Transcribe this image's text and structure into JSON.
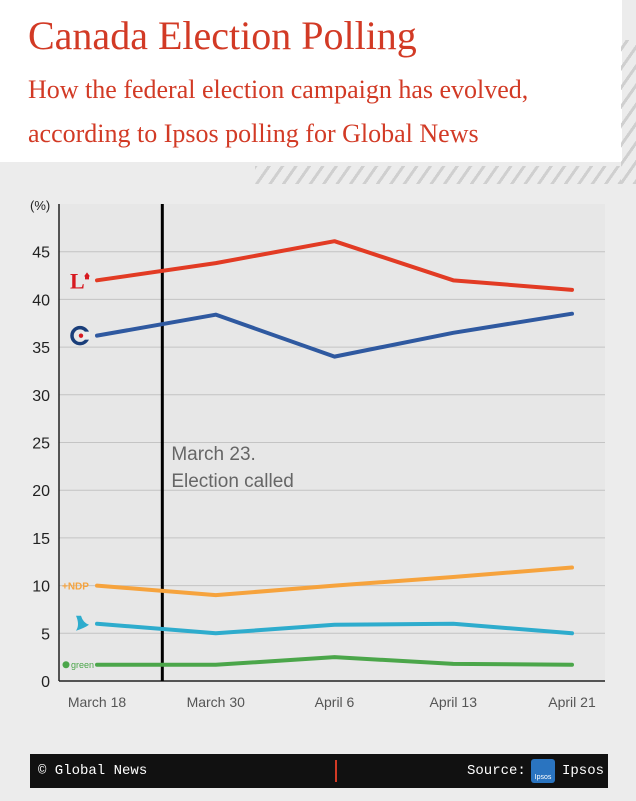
{
  "header": {
    "title": "Canada Election Polling",
    "subtitle": "How the federal election campaign has evolved, according to Ipsos polling for Global News"
  },
  "chart_data": {
    "type": "line",
    "ylabel": "(%)",
    "ylim": [
      0,
      50
    ],
    "yticks": [
      0,
      5,
      10,
      15,
      20,
      25,
      30,
      35,
      40,
      45
    ],
    "categories": [
      "March 18",
      "March 30",
      "April 6",
      "April 13",
      "April 21"
    ],
    "grid": true,
    "series": [
      {
        "party": "Liberal",
        "values": [
          42,
          43.8,
          46.1,
          42,
          41
        ],
        "color": "#e23b24",
        "icon": "liberal-logo"
      },
      {
        "party": "Conservative",
        "values": [
          36.2,
          38.4,
          34,
          36.5,
          38.5
        ],
        "color": "#2f59a0",
        "icon": "conservative-logo"
      },
      {
        "party": "NDP",
        "values": [
          10,
          9,
          10,
          10.9,
          11.9
        ],
        "color": "#f6a33d",
        "icon": "ndp-logo",
        "icon_text": "+NDP"
      },
      {
        "party": "Bloc Québécois",
        "values": [
          6,
          5,
          5.9,
          6,
          5
        ],
        "color": "#2eaccd",
        "icon": "bloc-logo"
      },
      {
        "party": "Green",
        "values": [
          1.7,
          1.7,
          2.5,
          1.8,
          1.7
        ],
        "color": "#4ba64a",
        "icon": "green-logo",
        "icon_text": "green"
      }
    ],
    "annotation": {
      "category_position": 0.55,
      "line1": "March 23.",
      "line2": "Election called"
    }
  },
  "footer": {
    "credit": "© Global News",
    "source_label": "Source:",
    "source_name": "Ipsos",
    "logo_text": "Ipsos"
  }
}
